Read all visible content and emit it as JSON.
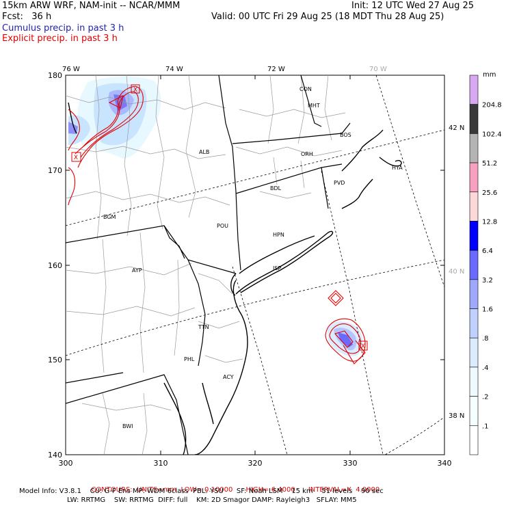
{
  "header": {
    "model_title": "15km ARW WRF, NAM-init -- NCAR/MMM",
    "forecast": "Fcst:   36 h",
    "init": "Init: 12 UTC Wed 27 Aug 25",
    "valid": "Valid: 00 UTC Fri 29 Aug 25 (18 MDT Thu 28 Aug 25)",
    "legend_cumulus": "Cumulus precip. in past 3 h",
    "legend_explicit": "Explicit precip. in past 3 h",
    "legend_cumulus_color": "#2222aa",
    "legend_explicit_color": "#e00000"
  },
  "map": {
    "x_axis_ticks": [
      "300",
      "310",
      "320",
      "330",
      "340"
    ],
    "y_axis_ticks": [
      "140",
      "150",
      "160",
      "170",
      "180"
    ],
    "lon_labels": [
      "76 W",
      "74 W",
      "72 W",
      "70 W"
    ],
    "lat_labels": [
      "42 N",
      "40 N",
      "38 N"
    ],
    "stations": [
      "CON",
      "MHT",
      "BOS",
      "ALB",
      "ORH",
      "HYA",
      "PVD",
      "BDL",
      "BGM",
      "POU",
      "HPN",
      "AYP",
      "ISP",
      "TTN",
      "PHL",
      "ACY",
      "BWI"
    ],
    "max_markers": [
      "X",
      "X",
      "X"
    ]
  },
  "colorbar": {
    "unit": "mm",
    "levels": [
      "204.8",
      "102.4",
      "51.2",
      "25.6",
      "12.8",
      "6.4",
      "3.2",
      "1.6",
      ".8",
      ".4",
      ".2",
      ".1"
    ],
    "colors": [
      "#d8a8f0",
      "#3a3a3a",
      "#b4b4b4",
      "#f8a0c0",
      "#fcd8d8",
      "#0000ff",
      "#6a6aff",
      "#9ea8ff",
      "#c0d0ff",
      "#dcecff",
      "#eefaff",
      "#f6ffff",
      "#ffffff"
    ]
  },
  "footer": {
    "contours_label": "CONTOURS:",
    "units": "UNITS=mm",
    "low": "LOW= 0.10000",
    "high": "HIGH= 6.4000",
    "interval": "INTERVAL=X  4.0000",
    "model_info_1": "Model Info: V3.8.1    CU: G-F Ens MP: WDM 6class  PBL: YSU      SF: Noah LSM    15 km    51 levels    90 sec",
    "model_info_2": "LW: RRTMG    SW: RRTMG  DIFF: full    KM: 2D Smagor DAMP: Rayleigh3   SFLAY: MM5"
  }
}
